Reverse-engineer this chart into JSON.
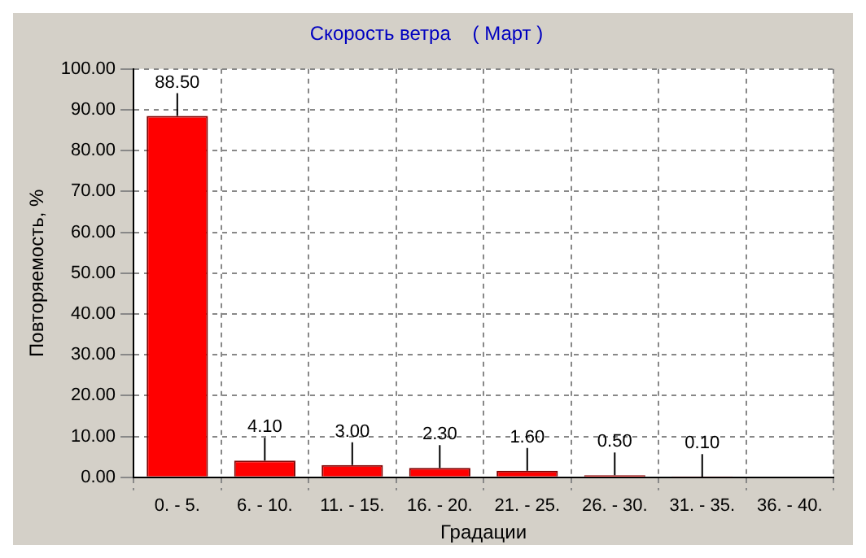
{
  "chart_data": {
    "type": "bar",
    "title": "Скорость ветра    ( Март )",
    "xlabel": "Градации",
    "ylabel": "Повторяемость, %",
    "categories": [
      "0. - 5.",
      "6. - 10.",
      "11. - 15.",
      "16. - 20.",
      "21. - 25.",
      "26. - 30.",
      "31. - 35.",
      "36. - 40."
    ],
    "values": [
      88.5,
      4.1,
      3.0,
      2.3,
      1.6,
      0.5,
      0.1,
      0
    ],
    "value_labels": [
      "88.50",
      "4.10",
      "3.00",
      "2.30",
      "1.60",
      "0.50",
      "0.10",
      null
    ],
    "color": "#ff0000",
    "ylim": [
      0,
      100
    ],
    "yticks": [
      {
        "value": 0,
        "label": "0.00"
      },
      {
        "value": 10,
        "label": "10.00"
      },
      {
        "value": 20,
        "label": "20.00"
      },
      {
        "value": 30,
        "label": "30.00"
      },
      {
        "value": 40,
        "label": "40.00"
      },
      {
        "value": 50,
        "label": "50.00"
      },
      {
        "value": 60,
        "label": "60.00"
      },
      {
        "value": 70,
        "label": "70.00"
      },
      {
        "value": 80,
        "label": "80.00"
      },
      {
        "value": 90,
        "label": "90.00"
      },
      {
        "value": 100,
        "label": "100.00"
      }
    ],
    "grid": true
  }
}
